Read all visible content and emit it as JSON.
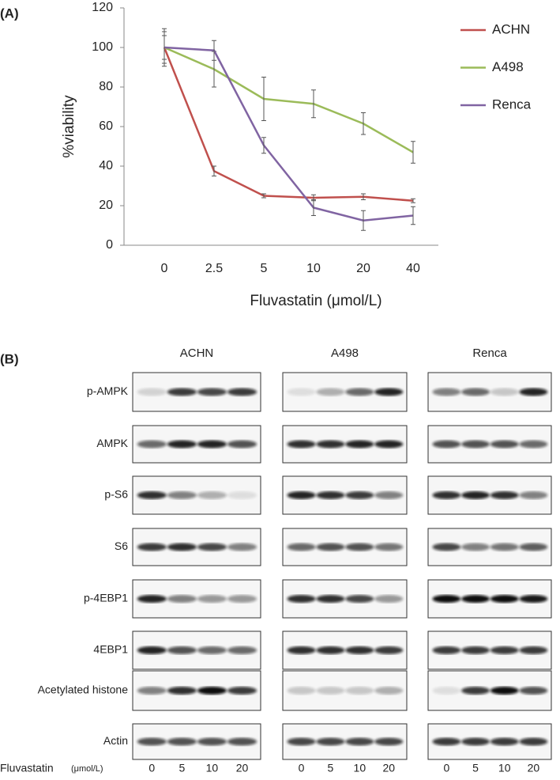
{
  "panel_labels": [
    "(A)",
    "(B)"
  ],
  "chart_data": {
    "type": "line",
    "x_label": "Fluvastatin (μmol/L)",
    "y_label": "%viability",
    "categories": [
      "0",
      "2.5",
      "5",
      "10",
      "20",
      "40"
    ],
    "ylim": [
      0,
      120
    ],
    "yticks": [
      0,
      20,
      40,
      60,
      80,
      100,
      120
    ],
    "grid": false,
    "legend": "top-right",
    "series": [
      {
        "name": "ACHN",
        "color": "#c0504d",
        "values": [
          100,
          37.5,
          25,
          24,
          24.5,
          22.5
        ],
        "errors": [
          8,
          2.5,
          1,
          1.5,
          1.5,
          1
        ]
      },
      {
        "name": "A498",
        "color": "#9bbb59",
        "values": [
          100,
          89,
          74,
          71.5,
          61.5,
          47
        ],
        "errors": [
          6,
          9,
          11,
          7,
          5.5,
          5.5
        ]
      },
      {
        "name": "Renca",
        "color": "#8064a2",
        "values": [
          100,
          98.5,
          50.5,
          19,
          12.5,
          15
        ],
        "errors": [
          9.5,
          5,
          4,
          4,
          5,
          4.5
        ]
      }
    ]
  },
  "blot": {
    "cell_lines": [
      "ACHN",
      "A498",
      "Renca"
    ],
    "proteins": [
      "p-AMPK",
      "AMPK",
      "p-S6",
      "S6",
      "p-4EBP1",
      "4EBP1",
      "Acetylated histone",
      "Actin"
    ],
    "treatment_label": "Fluvastatin",
    "unit_label": "(μmol/L)",
    "doses": [
      0,
      5,
      10,
      20
    ]
  }
}
